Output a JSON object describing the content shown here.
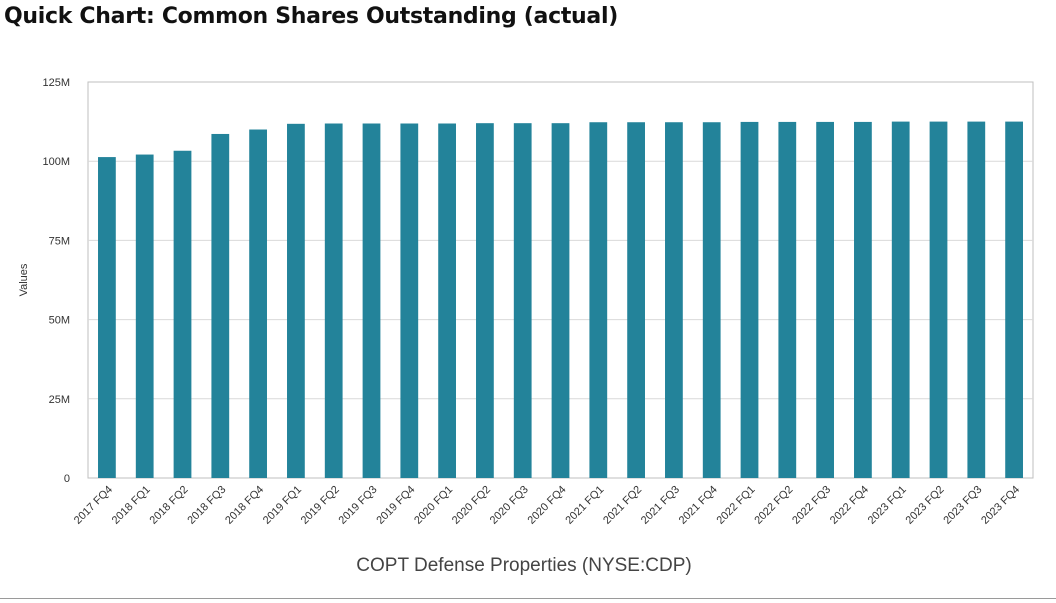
{
  "header": {
    "title": "Quick Chart: Common Shares Outstanding (actual)"
  },
  "colors": {
    "bar": "#23839a",
    "grid": "#d9d9d9",
    "frame": "#bfbfbf"
  },
  "chart_data": {
    "type": "bar",
    "title": "Quick Chart: Common Shares Outstanding (actual)",
    "xlabel": "COPT Defense Properties (NYSE:CDP)",
    "ylabel": "Values",
    "ylim": [
      0,
      125
    ],
    "unit": "M",
    "yticks": [
      {
        "value": 0,
        "label": "0"
      },
      {
        "value": 25,
        "label": "25M"
      },
      {
        "value": 50,
        "label": "50M"
      },
      {
        "value": 75,
        "label": "75M"
      },
      {
        "value": 100,
        "label": "100M"
      },
      {
        "value": 125,
        "label": "125M"
      }
    ],
    "categories": [
      "2017 FQ4",
      "2018 FQ1",
      "2018 FQ2",
      "2018 FQ3",
      "2018 FQ4",
      "2019 FQ1",
      "2019 FQ2",
      "2019 FQ3",
      "2019 FQ4",
      "2020 FQ1",
      "2020 FQ2",
      "2020 FQ3",
      "2020 FQ4",
      "2021 FQ1",
      "2021 FQ2",
      "2021 FQ3",
      "2021 FQ4",
      "2022 FQ1",
      "2022 FQ2",
      "2022 FQ3",
      "2022 FQ4",
      "2023 FQ1",
      "2023 FQ2",
      "2023 FQ3",
      "2023 FQ4"
    ],
    "values": [
      101.3,
      102.1,
      103.3,
      108.6,
      110.0,
      111.8,
      111.9,
      111.9,
      111.9,
      111.9,
      112.0,
      112.0,
      112.0,
      112.3,
      112.3,
      112.3,
      112.3,
      112.4,
      112.4,
      112.4,
      112.4,
      112.5,
      112.5,
      112.5,
      112.5
    ],
    "grid": true
  }
}
